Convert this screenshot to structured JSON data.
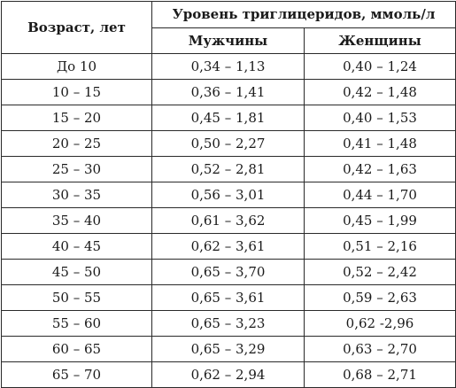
{
  "table": {
    "age_header": "Возраст, лет",
    "group_header": "Уровень триглицеридов, ммоль/л",
    "men_header": "Мужчины",
    "women_header": "Женщины",
    "rows": [
      {
        "age": "До 10",
        "men": "0,34 – 1,13",
        "women": "0,40 – 1,24"
      },
      {
        "age": "10 – 15",
        "men": "0,36 – 1,41",
        "women": "0,42 – 1,48"
      },
      {
        "age": "15 – 20",
        "men": "0,45 – 1,81",
        "women": "0,40 – 1,53"
      },
      {
        "age": "20 – 25",
        "men": "0,50 – 2,27",
        "women": "0,41 – 1,48"
      },
      {
        "age": "25 – 30",
        "men": "0,52 – 2,81",
        "women": "0,42 – 1,63"
      },
      {
        "age": "30 – 35",
        "men": "0,56 – 3,01",
        "women": "0,44 – 1,70"
      },
      {
        "age": "35 – 40",
        "men": "0,61 – 3,62",
        "women": "0,45 – 1,99"
      },
      {
        "age": "40 – 45",
        "men": "0,62 – 3,61",
        "women": "0,51 – 2,16"
      },
      {
        "age": "45 – 50",
        "men": "0,65 – 3,70",
        "women": "0,52 – 2,42"
      },
      {
        "age": "50 – 55",
        "men": "0,65 – 3,61",
        "women": "0,59 – 2,63"
      },
      {
        "age": "55 – 60",
        "men": "0,65 – 3,23",
        "women": "0,62 -2,96"
      },
      {
        "age": "60 – 65",
        "men": "0,65 – 3,29",
        "women": "0,63 – 2,70"
      },
      {
        "age": "65 – 70",
        "men": "0,62 – 2,94",
        "women": "0,68 – 2,71"
      }
    ]
  }
}
